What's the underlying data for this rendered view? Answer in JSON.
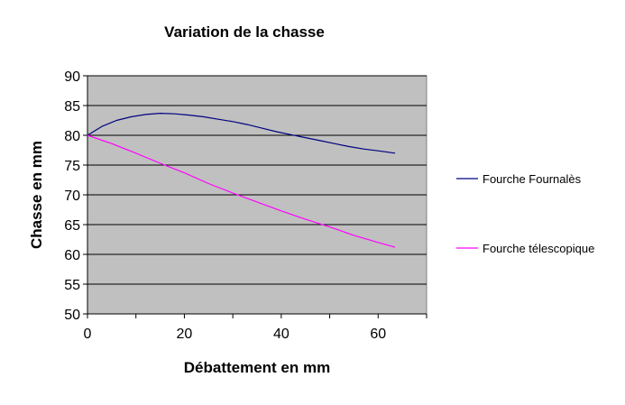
{
  "chart_data": {
    "type": "line",
    "title": "Variation de la chasse",
    "xlabel": "Débattement en mm",
    "ylabel": "Chasse en mm",
    "xlim": [
      0,
      70
    ],
    "ylim": [
      50,
      90
    ],
    "xticks": [
      0,
      20,
      40,
      60
    ],
    "yticks": [
      50,
      55,
      60,
      65,
      70,
      75,
      80,
      85,
      90
    ],
    "grid": "horizontal",
    "plot_background": "#c0c0c0",
    "legend_position": "right",
    "series": [
      {
        "name": "Fourche Fournalès",
        "color": "#000080",
        "x": [
          0,
          3,
          6,
          9,
          12,
          15,
          18,
          21,
          24,
          27,
          30,
          33,
          36,
          39,
          42,
          45,
          48,
          51,
          54,
          57,
          60,
          63.5
        ],
        "y": [
          80,
          81.5,
          82.5,
          83.1,
          83.5,
          83.7,
          83.6,
          83.4,
          83.1,
          82.7,
          82.3,
          81.8,
          81.2,
          80.6,
          80.1,
          79.6,
          79.1,
          78.6,
          78.1,
          77.7,
          77.4,
          77.0
        ]
      },
      {
        "name": "Fourche télescopique",
        "color": "#ff00ff",
        "x": [
          0,
          5,
          10,
          15,
          20,
          25,
          30,
          35,
          40,
          45,
          50,
          55,
          60,
          63.5
        ],
        "y": [
          80,
          78.6,
          77.0,
          75.3,
          73.7,
          71.9,
          70.3,
          68.8,
          67.3,
          65.9,
          64.6,
          63.2,
          62.0,
          61.2
        ]
      }
    ]
  }
}
